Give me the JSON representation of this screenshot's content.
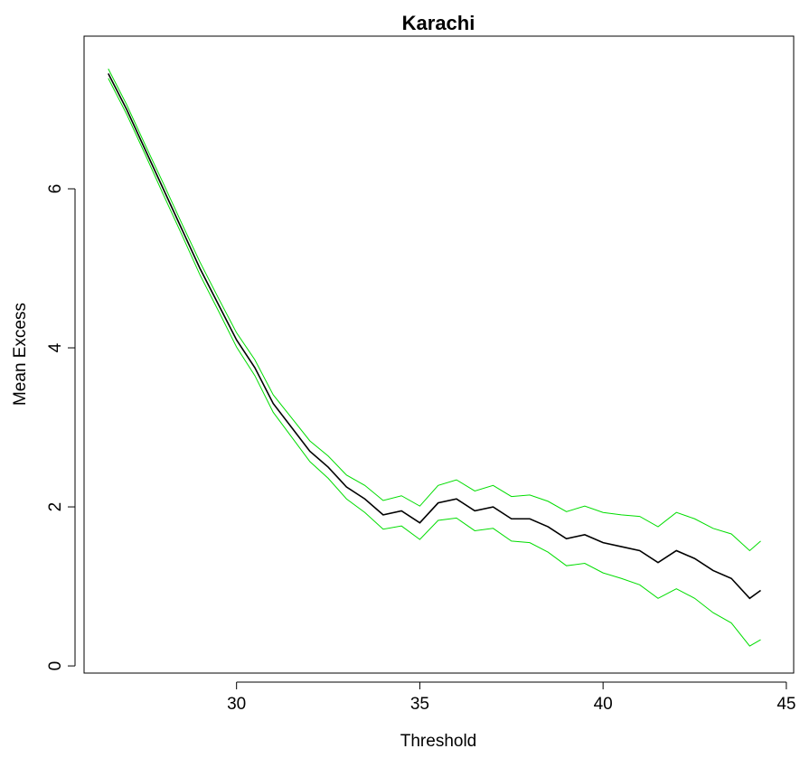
{
  "chart_data": {
    "type": "line",
    "title": "Karachi",
    "x_label": "Threshold",
    "y_label": "Mean Excess",
    "x": [
      26.5,
      27,
      27.5,
      28,
      28.5,
      29,
      29.5,
      30,
      30.5,
      31,
      31.5,
      32,
      32.5,
      33,
      33.5,
      34,
      34.5,
      35,
      35.5,
      36,
      36.5,
      37,
      37.5,
      38,
      38.5,
      39,
      39.5,
      40,
      40.5,
      41,
      41.5,
      42,
      42.5,
      43,
      43.5,
      44,
      44.3
    ],
    "series": [
      {
        "color": "#00dd00",
        "values": [
          7.51,
          7.06,
          6.56,
          6.07,
          5.57,
          5.08,
          4.63,
          4.19,
          3.85,
          3.41,
          3.12,
          2.83,
          2.64,
          2.4,
          2.27,
          2.08,
          2.14,
          2.01,
          2.27,
          2.34,
          2.2,
          2.27,
          2.13,
          2.15,
          2.07,
          1.94,
          2.01,
          1.93,
          1.9,
          1.88,
          1.75,
          1.93,
          1.85,
          1.73,
          1.66,
          1.45,
          1.57
        ]
      },
      {
        "color": "#00dd00",
        "values": [
          7.39,
          6.94,
          6.44,
          5.93,
          5.43,
          4.92,
          4.47,
          4.01,
          3.65,
          3.19,
          2.88,
          2.57,
          2.36,
          2.1,
          1.93,
          1.72,
          1.76,
          1.59,
          1.83,
          1.86,
          1.7,
          1.73,
          1.57,
          1.55,
          1.43,
          1.26,
          1.29,
          1.17,
          1.1,
          1.02,
          0.85,
          0.97,
          0.85,
          0.67,
          0.54,
          0.25,
          0.33
        ]
      },
      {
        "color": "#000000",
        "values": [
          7.45,
          7.0,
          6.5,
          6.0,
          5.5,
          5.0,
          4.55,
          4.1,
          3.75,
          3.3,
          3.0,
          2.7,
          2.5,
          2.25,
          2.1,
          1.9,
          1.95,
          1.8,
          2.05,
          2.1,
          1.95,
          2.0,
          1.85,
          1.85,
          1.75,
          1.6,
          1.65,
          1.55,
          1.5,
          1.45,
          1.3,
          1.45,
          1.35,
          1.2,
          1.1,
          0.85,
          0.95
        ]
      }
    ],
    "xlim": [
      25.84,
      45.2
    ],
    "ylim": [
      -0.09,
      7.92
    ],
    "xticks": [
      30,
      35,
      40,
      45
    ],
    "yticks": [
      0,
      2,
      4,
      6
    ]
  }
}
